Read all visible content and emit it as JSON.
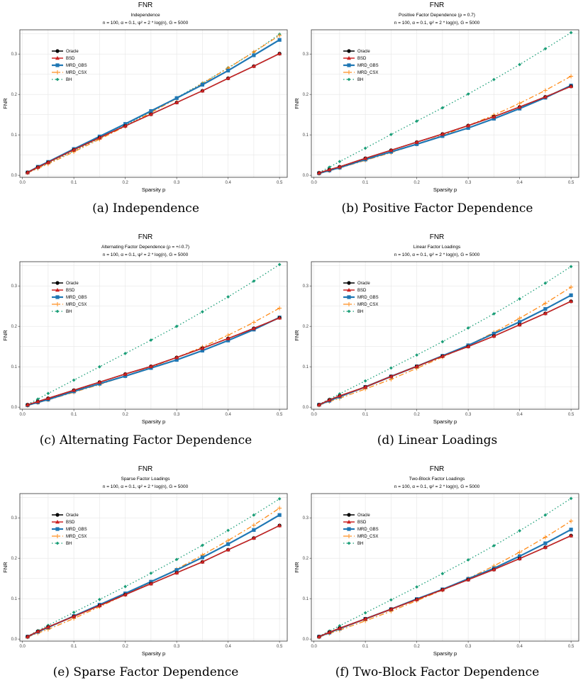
{
  "colors": {
    "Oracle": "#000000",
    "BSD": "#CC2222",
    "MRD_GBS": "#1F77B4",
    "MRD_CSX": "#FF8C1A",
    "BH": "#1A9E77",
    "grid": "#e6e6e6",
    "panel_border": "#333333"
  },
  "common": {
    "title": "FNR",
    "params": "n = 100, α = 0.1, ψ² = 2 * log(n), G = 5000",
    "xlabel": "Sparsity p",
    "ylabel": "FNR",
    "legend": [
      "Oracle",
      "BSD",
      "MRD_GBS",
      "MRD_CSX",
      "BH"
    ]
  },
  "chart_data": [
    {
      "type": "line",
      "caption": "(a) Independence",
      "subtitle": "Independence",
      "x": [
        0.01,
        0.03,
        0.05,
        0.1,
        0.15,
        0.2,
        0.25,
        0.3,
        0.35,
        0.4,
        0.45,
        0.5
      ],
      "xlim": [
        -0.005,
        0.515
      ],
      "ylim": [
        -0.005,
        0.36
      ],
      "xticks": [
        "0.0",
        "0.1",
        "0.2",
        "0.3",
        "0.4",
        "0.5"
      ],
      "yticks": [
        "0.0",
        "0.1",
        "0.2",
        "0.3"
      ],
      "legend_position": "top-left",
      "grid": true,
      "series": [
        {
          "name": "Oracle",
          "values": [
            0.007,
            0.02,
            0.032,
            0.063,
            0.093,
            0.122,
            0.151,
            0.18,
            0.209,
            0.24,
            0.27,
            0.301
          ]
        },
        {
          "name": "BSD",
          "values": [
            0.007,
            0.02,
            0.032,
            0.063,
            0.093,
            0.122,
            0.151,
            0.18,
            0.209,
            0.24,
            0.27,
            0.301
          ]
        },
        {
          "name": "MRD_GBS",
          "values": [
            0.007,
            0.021,
            0.033,
            0.065,
            0.096,
            0.127,
            0.159,
            0.191,
            0.224,
            0.259,
            0.297,
            0.335
          ]
        },
        {
          "name": "MRD_CSX",
          "values": [
            0.006,
            0.017,
            0.028,
            0.058,
            0.089,
            0.121,
            0.155,
            0.19,
            0.227,
            0.265,
            0.305,
            0.346
          ]
        },
        {
          "name": "BH",
          "values": [
            0.006,
            0.018,
            0.03,
            0.06,
            0.091,
            0.124,
            0.157,
            0.192,
            0.228,
            0.266,
            0.305,
            0.349
          ]
        }
      ]
    },
    {
      "type": "line",
      "caption": "(b) Positive Factor Dependence",
      "subtitle": "Positive Factor Dependence (ρ = 0.7)",
      "x": [
        0.01,
        0.03,
        0.05,
        0.1,
        0.15,
        0.2,
        0.25,
        0.3,
        0.35,
        0.4,
        0.45,
        0.5
      ],
      "xlim": [
        -0.005,
        0.515
      ],
      "ylim": [
        -0.005,
        0.36
      ],
      "xticks": [
        "0.0",
        "0.1",
        "0.2",
        "0.3",
        "0.4",
        "0.5"
      ],
      "yticks": [
        "0.0",
        "0.1",
        "0.2",
        "0.3"
      ],
      "legend_position": "top-left",
      "grid": true,
      "series": [
        {
          "name": "Oracle",
          "values": [
            0.006,
            0.014,
            0.021,
            0.042,
            0.062,
            0.082,
            0.102,
            0.123,
            0.145,
            0.169,
            0.194,
            0.22
          ]
        },
        {
          "name": "BSD",
          "values": [
            0.006,
            0.014,
            0.021,
            0.042,
            0.062,
            0.082,
            0.102,
            0.123,
            0.145,
            0.169,
            0.194,
            0.22
          ]
        },
        {
          "name": "MRD_GBS",
          "values": [
            0.005,
            0.012,
            0.019,
            0.039,
            0.058,
            0.077,
            0.097,
            0.117,
            0.14,
            0.165,
            0.192,
            0.222
          ]
        },
        {
          "name": "MRD_CSX",
          "values": [
            0.004,
            0.011,
            0.018,
            0.037,
            0.056,
            0.077,
            0.099,
            0.123,
            0.149,
            0.178,
            0.21,
            0.245
          ]
        },
        {
          "name": "BH",
          "values": [
            0.007,
            0.02,
            0.034,
            0.067,
            0.101,
            0.134,
            0.167,
            0.201,
            0.237,
            0.274,
            0.313,
            0.353
          ]
        }
      ]
    },
    {
      "type": "line",
      "caption": "(c) Alternating Factor Dependence",
      "subtitle": "Alternating Factor Dependence (ρ = +/-0.7)",
      "x": [
        0.01,
        0.03,
        0.05,
        0.1,
        0.15,
        0.2,
        0.25,
        0.3,
        0.35,
        0.4,
        0.45,
        0.5
      ],
      "xlim": [
        -0.005,
        0.515
      ],
      "ylim": [
        -0.005,
        0.36
      ],
      "xticks": [
        "0.0",
        "0.1",
        "0.2",
        "0.3",
        "0.4",
        "0.5"
      ],
      "yticks": [
        "0.0",
        "0.1",
        "0.2",
        "0.3"
      ],
      "legend_position": "top-left",
      "grid": true,
      "series": [
        {
          "name": "Oracle",
          "values": [
            0.006,
            0.014,
            0.022,
            0.042,
            0.062,
            0.082,
            0.101,
            0.123,
            0.146,
            0.17,
            0.195,
            0.221
          ]
        },
        {
          "name": "BSD",
          "values": [
            0.006,
            0.014,
            0.022,
            0.042,
            0.062,
            0.082,
            0.101,
            0.123,
            0.146,
            0.17,
            0.195,
            0.221
          ]
        },
        {
          "name": "MRD_GBS",
          "values": [
            0.005,
            0.012,
            0.019,
            0.039,
            0.058,
            0.077,
            0.097,
            0.117,
            0.14,
            0.165,
            0.192,
            0.222
          ]
        },
        {
          "name": "MRD_CSX",
          "values": [
            0.004,
            0.011,
            0.018,
            0.037,
            0.056,
            0.077,
            0.099,
            0.123,
            0.149,
            0.178,
            0.21,
            0.245
          ]
        },
        {
          "name": "BH",
          "values": [
            0.007,
            0.02,
            0.034,
            0.067,
            0.1,
            0.133,
            0.166,
            0.2,
            0.236,
            0.273,
            0.312,
            0.353
          ]
        }
      ]
    },
    {
      "type": "line",
      "caption": "(d) Linear Loadings",
      "subtitle": "Linear Factor Loadings",
      "x": [
        0.01,
        0.03,
        0.05,
        0.1,
        0.15,
        0.2,
        0.25,
        0.3,
        0.35,
        0.4,
        0.45,
        0.5
      ],
      "xlim": [
        -0.005,
        0.515
      ],
      "ylim": [
        -0.005,
        0.36
      ],
      "xticks": [
        "0.0",
        "0.1",
        "0.2",
        "0.3",
        "0.4",
        "0.5"
      ],
      "yticks": [
        "0.0",
        "0.1",
        "0.2",
        "0.3"
      ],
      "legend_position": "top-left",
      "grid": true,
      "series": [
        {
          "name": "Oracle",
          "values": [
            0.006,
            0.018,
            0.028,
            0.05,
            0.076,
            0.101,
            0.126,
            0.15,
            0.176,
            0.204,
            0.232,
            0.262
          ]
        },
        {
          "name": "BSD",
          "values": [
            0.006,
            0.018,
            0.028,
            0.05,
            0.076,
            0.101,
            0.126,
            0.15,
            0.176,
            0.204,
            0.232,
            0.262
          ]
        },
        {
          "name": "MRD_GBS",
          "values": [
            0.006,
            0.016,
            0.026,
            0.05,
            0.076,
            0.101,
            0.127,
            0.153,
            0.182,
            0.211,
            0.243,
            0.277
          ]
        },
        {
          "name": "MRD_CSX",
          "values": [
            0.005,
            0.014,
            0.022,
            0.045,
            0.069,
            0.096,
            0.124,
            0.153,
            0.185,
            0.22,
            0.257,
            0.297
          ]
        },
        {
          "name": "BH",
          "values": [
            0.007,
            0.02,
            0.033,
            0.065,
            0.097,
            0.129,
            0.162,
            0.196,
            0.231,
            0.268,
            0.307,
            0.348
          ]
        }
      ]
    },
    {
      "type": "line",
      "caption": "(e) Sparse Factor Dependence",
      "subtitle": "Sparse Factor Loadings",
      "x": [
        0.01,
        0.03,
        0.05,
        0.1,
        0.15,
        0.2,
        0.25,
        0.3,
        0.35,
        0.4,
        0.45,
        0.5
      ],
      "xlim": [
        -0.005,
        0.515
      ],
      "ylim": [
        -0.005,
        0.36
      ],
      "xticks": [
        "0.0",
        "0.1",
        "0.2",
        "0.3",
        "0.4",
        "0.5"
      ],
      "yticks": [
        "0.0",
        "0.1",
        "0.2",
        "0.3"
      ],
      "legend_position": "top-left",
      "grid": true,
      "series": [
        {
          "name": "Oracle",
          "values": [
            0.006,
            0.019,
            0.03,
            0.056,
            0.083,
            0.11,
            0.137,
            0.164,
            0.191,
            0.221,
            0.25,
            0.281
          ]
        },
        {
          "name": "BSD",
          "values": [
            0.006,
            0.019,
            0.03,
            0.056,
            0.083,
            0.11,
            0.137,
            0.164,
            0.191,
            0.221,
            0.25,
            0.281
          ]
        },
        {
          "name": "MRD_GBS",
          "values": [
            0.006,
            0.018,
            0.029,
            0.057,
            0.085,
            0.113,
            0.142,
            0.171,
            0.202,
            0.235,
            0.27,
            0.307
          ]
        },
        {
          "name": "MRD_CSX",
          "values": [
            0.005,
            0.015,
            0.024,
            0.051,
            0.08,
            0.11,
            0.141,
            0.173,
            0.208,
            0.244,
            0.282,
            0.324
          ]
        },
        {
          "name": "BH",
          "values": [
            0.007,
            0.021,
            0.034,
            0.066,
            0.098,
            0.13,
            0.163,
            0.197,
            0.232,
            0.269,
            0.307,
            0.347
          ]
        }
      ]
    },
    {
      "type": "line",
      "caption": "(f) Two-Block Factor Dependence",
      "subtitle": "Two-Block Factor Loadings",
      "x": [
        0.01,
        0.03,
        0.05,
        0.1,
        0.15,
        0.2,
        0.25,
        0.3,
        0.35,
        0.4,
        0.45,
        0.5
      ],
      "xlim": [
        -0.005,
        0.515
      ],
      "ylim": [
        -0.005,
        0.36
      ],
      "xticks": [
        "0.0",
        "0.1",
        "0.2",
        "0.3",
        "0.4",
        "0.5"
      ],
      "yticks": [
        "0.0",
        "0.1",
        "0.2",
        "0.3"
      ],
      "legend_position": "top-left",
      "grid": true,
      "series": [
        {
          "name": "Oracle",
          "values": [
            0.006,
            0.017,
            0.027,
            0.05,
            0.074,
            0.098,
            0.122,
            0.147,
            0.172,
            0.199,
            0.227,
            0.256
          ]
        },
        {
          "name": "BSD",
          "values": [
            0.006,
            0.017,
            0.027,
            0.05,
            0.074,
            0.098,
            0.122,
            0.147,
            0.172,
            0.199,
            0.227,
            0.256
          ]
        },
        {
          "name": "MRD_GBS",
          "values": [
            0.006,
            0.016,
            0.026,
            0.05,
            0.074,
            0.099,
            0.123,
            0.149,
            0.175,
            0.205,
            0.237,
            0.271
          ]
        },
        {
          "name": "MRD_CSX",
          "values": [
            0.005,
            0.014,
            0.022,
            0.045,
            0.069,
            0.095,
            0.121,
            0.15,
            0.181,
            0.215,
            0.252,
            0.292
          ]
        },
        {
          "name": "BH",
          "values": [
            0.007,
            0.02,
            0.033,
            0.065,
            0.097,
            0.129,
            0.162,
            0.196,
            0.231,
            0.268,
            0.307,
            0.348
          ]
        }
      ]
    }
  ]
}
